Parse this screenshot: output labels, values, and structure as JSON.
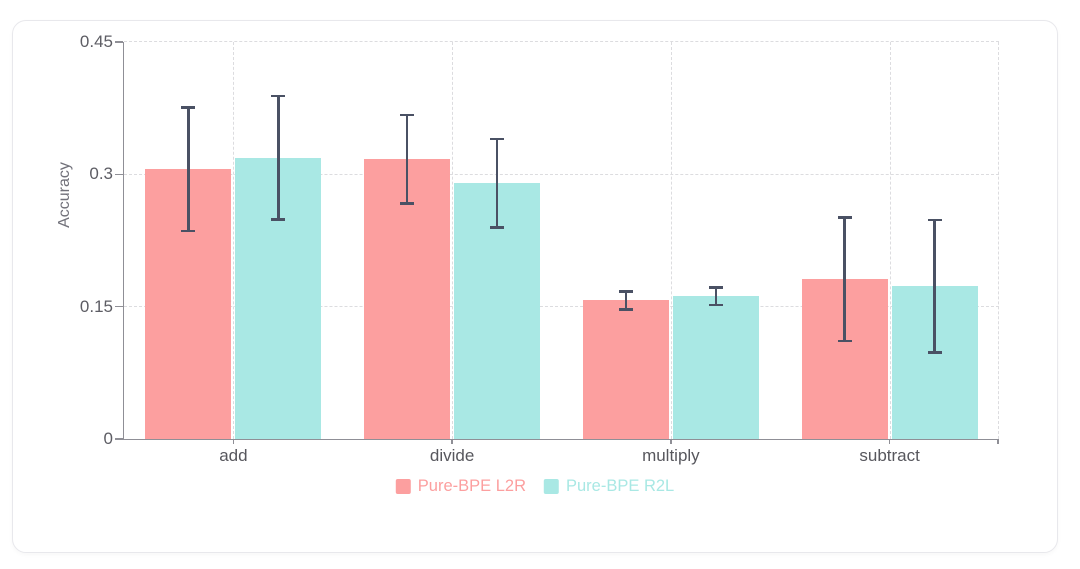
{
  "chart_data": {
    "type": "bar",
    "title": "",
    "xlabel": "",
    "ylabel": "Accuracy",
    "categories": [
      "add",
      "divide",
      "multiply",
      "subtract"
    ],
    "series": [
      {
        "name": "Pure-BPE L2R",
        "color": "#FC9F9F",
        "values": [
          0.306,
          0.317,
          0.157,
          0.181
        ],
        "errors": [
          0.07,
          0.05,
          0.01,
          0.07
        ]
      },
      {
        "name": "Pure-BPE R2L",
        "color": "#A9E8E4",
        "values": [
          0.319,
          0.29,
          0.162,
          0.173
        ],
        "errors": [
          0.07,
          0.05,
          0.01,
          0.075
        ]
      }
    ],
    "ylim": [
      0,
      0.45
    ],
    "yticks": [
      0,
      0.15,
      0.3,
      0.45
    ],
    "ytick_labels": [
      "0",
      "0.15",
      "0.3",
      "0.45"
    ],
    "grid": "dashed",
    "grid_color": "#dcdcdf",
    "axis_color": "#8f8f96",
    "error_bar_color": "#4a5164",
    "legend_position": "bottom-center"
  }
}
